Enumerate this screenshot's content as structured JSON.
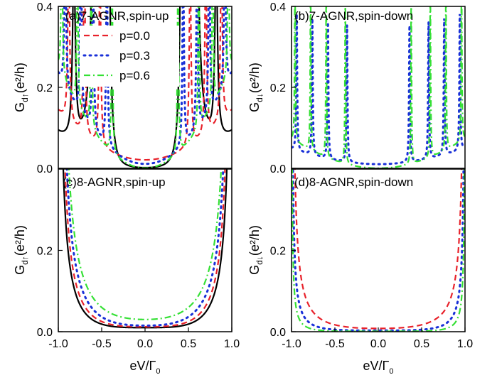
{
  "colors": {
    "p0": "#e8212a",
    "p3": "#1930d8",
    "p6": "#35e035",
    "ideal": "#000000"
  },
  "legend": [
    {
      "label": "p=0.0",
      "color": "#e8212a",
      "dash": "8,5"
    },
    {
      "label": "p=0.3",
      "color": "#1930d8",
      "dash": "2,6"
    },
    {
      "label": "p=0.6",
      "color": "#35e035",
      "dash": "9,4,2,4"
    }
  ],
  "chart_data": [
    {
      "type": "line",
      "title": "(a)7-AGNR,spin-up",
      "xlabel": "",
      "ylabel": "G",
      "ylabel_sub": "d↑",
      "ylabel_unit": "(e²/h)",
      "xlim": [
        -1.0,
        1.0
      ],
      "ylim": [
        0.0,
        0.4
      ],
      "yticks": [
        "0.0",
        "0.2",
        "0.4"
      ],
      "xticks": [],
      "series": [
        {
          "name": "p=0.0",
          "color": "#e8212a",
          "dash": "8,5",
          "values": "resonant"
        },
        {
          "name": "p=0.3",
          "color": "#1930d8",
          "dash": "2,6",
          "values": "resonant"
        },
        {
          "name": "p=0.6",
          "color": "#35e035",
          "dash": "9,4,2,4",
          "values": "resonant"
        },
        {
          "color": "#000000",
          "dash": "",
          "values": "resonant"
        }
      ]
    },
    {
      "type": "line",
      "title": "(b)7-AGNR,spin-down",
      "xlabel": "",
      "ylabel": "G",
      "ylabel_sub": "d↓",
      "ylabel_unit": "(e²/h)",
      "xlim": [
        -1.0,
        1.0
      ],
      "ylim": [
        0.0,
        0.4
      ],
      "yticks": [
        "0.0",
        "0.2",
        "0.4"
      ],
      "xticks": []
    },
    {
      "type": "line",
      "title": "(c)8-AGNR,spin-up",
      "xlabel": "eV/Γ",
      "xlabel_sub": "0",
      "ylabel": "G",
      "ylabel_sub": "d↑",
      "ylabel_unit": "(e²/h)",
      "xlim": [
        -1.0,
        1.0
      ],
      "ylim": [
        0.0,
        0.4
      ],
      "yticks": [
        "0.0",
        "0.2"
      ],
      "xticks": [
        "-1.0",
        "-0.5",
        "0.0",
        "0.5",
        "1.0"
      ]
    },
    {
      "type": "line",
      "title": "(d)8-AGNR,spin-down",
      "xlabel": "eV/Γ",
      "xlabel_sub": "0",
      "ylabel": "G",
      "ylabel_sub": "d↓",
      "ylabel_unit": "(e²/h)",
      "xlim": [
        -1.0,
        1.0
      ],
      "ylim": [
        0.0,
        0.4
      ],
      "yticks": [
        "0.0",
        "0.2"
      ],
      "xticks": [
        "-1.0",
        "-0.5",
        "0.0",
        "0.5",
        "1.0"
      ]
    }
  ]
}
